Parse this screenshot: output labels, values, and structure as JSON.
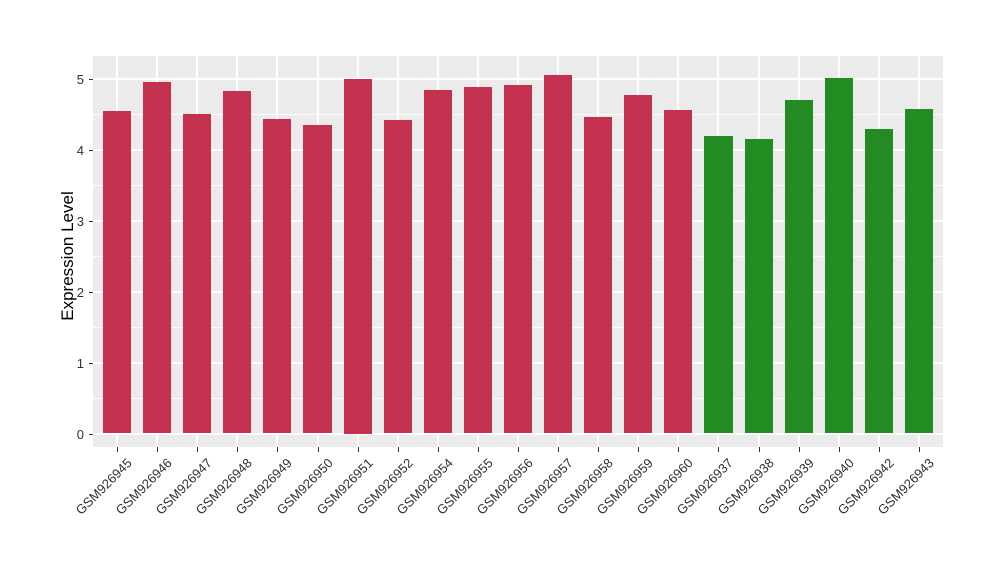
{
  "chart_data": {
    "type": "bar",
    "title": "",
    "ylabel": "Expression Level",
    "xlabel": "",
    "ylim": [
      0,
      5.3
    ],
    "yticks": [
      0,
      1,
      2,
      3,
      4,
      5
    ],
    "minor_gridlines": [
      0.5,
      1.5,
      2.5,
      3.5,
      4.5
    ],
    "grid": "on-white-over-grey-panel",
    "legend_position": "none",
    "x_tick_label_rotation_deg": 45,
    "categories": [
      "GSM926945",
      "GSM926946",
      "GSM926947",
      "GSM926948",
      "GSM926949",
      "GSM926950",
      "GSM926951",
      "GSM926952",
      "GSM926954",
      "GSM926955",
      "GSM926956",
      "GSM926957",
      "GSM926958",
      "GSM926959",
      "GSM926960",
      "GSM926937",
      "GSM926938",
      "GSM926939",
      "GSM926940",
      "GSM926942",
      "GSM926943"
    ],
    "values": [
      4.55,
      4.96,
      4.5,
      4.83,
      4.43,
      4.35,
      5.0,
      4.42,
      4.84,
      4.89,
      4.92,
      5.06,
      4.46,
      4.78,
      4.56,
      4.2,
      4.16,
      4.71,
      5.01,
      4.3,
      4.57
    ],
    "bar_groups": [
      "group1",
      "group1",
      "group1",
      "group1",
      "group1",
      "group1",
      "group1",
      "group1",
      "group1",
      "group1",
      "group1",
      "group1",
      "group1",
      "group1",
      "group1",
      "group2",
      "group2",
      "group2",
      "group2",
      "group2",
      "group2"
    ],
    "group_colors": {
      "group1": "#C3314E",
      "group2": "#228B22"
    }
  },
  "style": {
    "page_background": "#FFFFFF",
    "panel_background": "#EBEBEB",
    "grid_color": "#FFFFFF",
    "tick_color": "#333333",
    "tick_label_color": "#303030",
    "axis_title_color": "#000000"
  }
}
